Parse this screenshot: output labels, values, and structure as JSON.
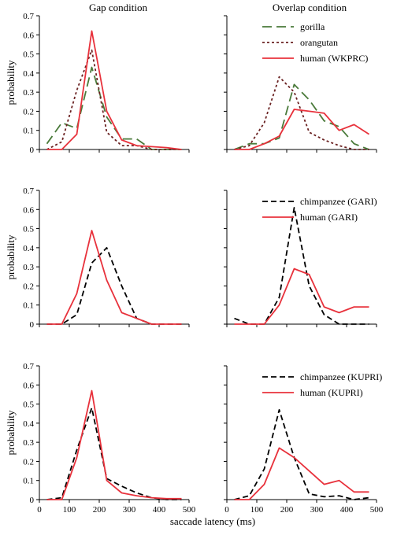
{
  "figure": {
    "column_titles": [
      "Gap condition",
      "Overlap condition"
    ],
    "ylabel": "probability",
    "xlabel": "saccade latency (ms)"
  },
  "styles": {
    "gorilla": {
      "color": "#4a7a3a",
      "dash": "12,6"
    },
    "orangutan": {
      "color": "#6b2222",
      "dash": "3,3"
    },
    "human": {
      "color": "#e8323c",
      "dash": ""
    },
    "chimpanzee": {
      "color": "#000000",
      "dash": "7,4"
    }
  },
  "chart_data": [
    {
      "type": "line",
      "row": 0,
      "col": 0,
      "x": [
        25,
        75,
        125,
        175,
        225,
        275,
        325,
        375,
        425,
        475
      ],
      "xlim": [
        0,
        500
      ],
      "ylim": [
        0,
        0.7
      ],
      "xticks": [],
      "yticks": [
        "0",
        "0.1",
        "0.2",
        "0.3",
        "0.4",
        "0.5",
        "0.6",
        "0.7"
      ],
      "ylabel": "probability",
      "legend": [],
      "series": [
        {
          "style": "gorilla",
          "values": [
            0.03,
            0.14,
            0.11,
            0.43,
            0.17,
            0.055,
            0.055,
            0.0,
            0.0,
            0.0
          ]
        },
        {
          "style": "orangutan",
          "values": [
            0.0,
            0.04,
            0.31,
            0.52,
            0.09,
            0.02,
            0.02,
            0.0,
            0.0,
            0.0
          ]
        },
        {
          "style": "human",
          "values": [
            0.0,
            0.0,
            0.08,
            0.62,
            0.2,
            0.05,
            0.02,
            0.015,
            0.01,
            0.0
          ]
        }
      ]
    },
    {
      "type": "line",
      "row": 0,
      "col": 1,
      "x": [
        25,
        75,
        125,
        175,
        225,
        275,
        325,
        375,
        425,
        475
      ],
      "xlim": [
        0,
        500
      ],
      "ylim": [
        0,
        0.7
      ],
      "xticks": [],
      "yticks": [],
      "ylabel": "",
      "legend": [
        {
          "style": "gorilla",
          "label": "gorilla"
        },
        {
          "style": "orangutan",
          "label": "orangutan"
        },
        {
          "style": "human",
          "label": "human (WKPRC)"
        }
      ],
      "series": [
        {
          "style": "gorilla",
          "values": [
            0.0,
            0.03,
            0.03,
            0.06,
            0.34,
            0.26,
            0.15,
            0.12,
            0.03,
            0.0
          ]
        },
        {
          "style": "orangutan",
          "values": [
            0.0,
            0.02,
            0.14,
            0.38,
            0.3,
            0.09,
            0.05,
            0.02,
            0.0,
            0.0
          ]
        },
        {
          "style": "human",
          "values": [
            0.0,
            0.0,
            0.03,
            0.07,
            0.21,
            0.2,
            0.19,
            0.1,
            0.13,
            0.08
          ]
        }
      ]
    },
    {
      "type": "line",
      "row": 1,
      "col": 0,
      "x": [
        25,
        75,
        125,
        175,
        225,
        275,
        325,
        375,
        425,
        475
      ],
      "xlim": [
        0,
        500
      ],
      "ylim": [
        0,
        0.7
      ],
      "xticks": [],
      "yticks": [
        "0",
        "0.1",
        "0.2",
        "0.3",
        "0.4",
        "0.5",
        "0.6",
        "0.7"
      ],
      "ylabel": "probability",
      "legend": [],
      "series": [
        {
          "style": "chimpanzee",
          "values": [
            0.0,
            0.0,
            0.05,
            0.32,
            0.4,
            0.2,
            0.03,
            0.0,
            0.0,
            0.0
          ]
        },
        {
          "style": "human",
          "values": [
            0.0,
            0.0,
            0.16,
            0.49,
            0.23,
            0.06,
            0.03,
            0.0,
            0.0,
            0.0
          ]
        }
      ]
    },
    {
      "type": "line",
      "row": 1,
      "col": 1,
      "x": [
        25,
        75,
        125,
        175,
        225,
        275,
        325,
        375,
        425,
        475
      ],
      "xlim": [
        0,
        500
      ],
      "ylim": [
        0,
        0.7
      ],
      "xticks": [],
      "yticks": [],
      "ylabel": "",
      "legend": [
        {
          "style": "chimpanzee",
          "label": "chimpanzee (GARI)"
        },
        {
          "style": "human",
          "label": "human (GARI)"
        }
      ],
      "series": [
        {
          "style": "chimpanzee",
          "values": [
            0.03,
            0.0,
            0.0,
            0.14,
            0.61,
            0.2,
            0.05,
            0.0,
            0.0,
            0.0
          ]
        },
        {
          "style": "human",
          "values": [
            0.0,
            0.0,
            0.0,
            0.1,
            0.29,
            0.26,
            0.09,
            0.06,
            0.09,
            0.09
          ]
        }
      ]
    },
    {
      "type": "line",
      "row": 2,
      "col": 0,
      "x": [
        25,
        75,
        125,
        175,
        225,
        275,
        325,
        375,
        425,
        475
      ],
      "xlim": [
        0,
        500
      ],
      "ylim": [
        0,
        0.7
      ],
      "xticks": [
        "0",
        "100",
        "200",
        "300",
        "400",
        "500"
      ],
      "yticks": [
        "0",
        "0.1",
        "0.2",
        "0.3",
        "0.4",
        "0.5",
        "0.6",
        "0.7"
      ],
      "ylabel": "probability",
      "legend": [],
      "series": [
        {
          "style": "chimpanzee",
          "values": [
            0.0,
            0.01,
            0.26,
            0.48,
            0.11,
            0.07,
            0.035,
            0.01,
            0.0,
            0.0
          ]
        },
        {
          "style": "human",
          "values": [
            0.0,
            0.0,
            0.22,
            0.57,
            0.1,
            0.035,
            0.02,
            0.01,
            0.005,
            0.005
          ]
        }
      ]
    },
    {
      "type": "line",
      "row": 2,
      "col": 1,
      "x": [
        25,
        75,
        125,
        175,
        225,
        275,
        325,
        375,
        425,
        475
      ],
      "xlim": [
        0,
        500
      ],
      "ylim": [
        0,
        0.7
      ],
      "xticks": [
        "0",
        "100",
        "200",
        "300",
        "400",
        "500"
      ],
      "yticks": [],
      "ylabel": "",
      "legend": [
        {
          "style": "chimpanzee",
          "label": "chimpanzee (KUPRI)"
        },
        {
          "style": "human",
          "label": "human (KUPRI)"
        }
      ],
      "series": [
        {
          "style": "chimpanzee",
          "values": [
            0.0,
            0.02,
            0.16,
            0.47,
            0.22,
            0.03,
            0.015,
            0.02,
            0.0,
            0.01
          ]
        },
        {
          "style": "human",
          "values": [
            0.0,
            0.0,
            0.08,
            0.27,
            0.22,
            0.15,
            0.08,
            0.1,
            0.04,
            0.04
          ]
        }
      ]
    }
  ]
}
